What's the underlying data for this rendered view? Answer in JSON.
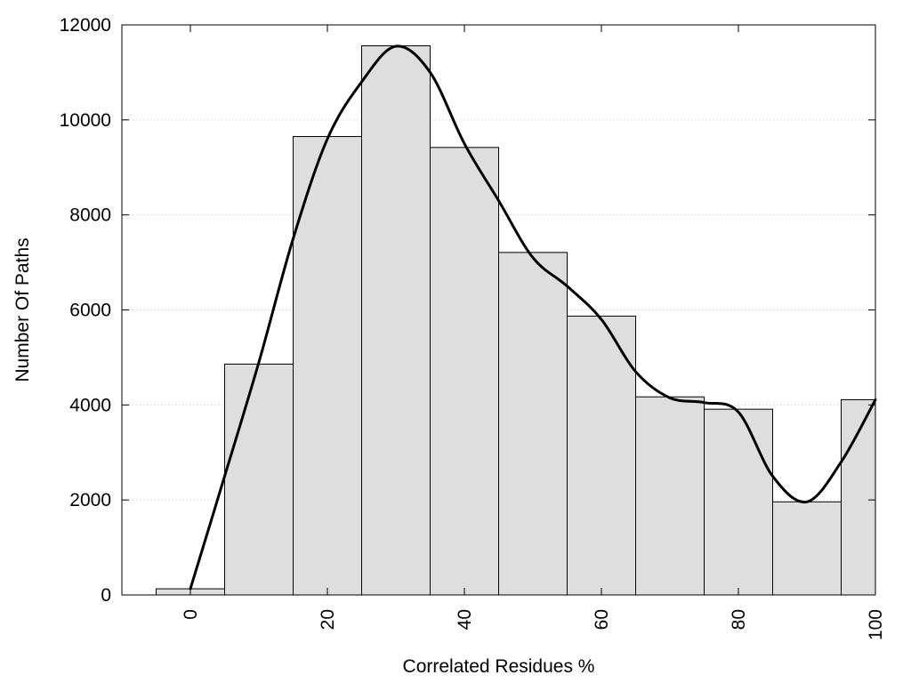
{
  "chart_data": {
    "type": "bar",
    "xlabel": "Correlated Residues %",
    "ylabel": "Number Of Paths",
    "xlim": [
      -10,
      100
    ],
    "ylim": [
      0,
      12000
    ],
    "x_ticks": [
      0,
      20,
      40,
      60,
      80,
      100
    ],
    "y_ticks": [
      0,
      2000,
      4000,
      6000,
      8000,
      10000,
      12000
    ],
    "grid": "horizontal-dotted",
    "bin_width": 10,
    "bars": [
      {
        "x": 0,
        "value": 130
      },
      {
        "x": 10,
        "value": 4860
      },
      {
        "x": 20,
        "value": 9650
      },
      {
        "x": 30,
        "value": 11560
      },
      {
        "x": 40,
        "value": 9420
      },
      {
        "x": 50,
        "value": 7210
      },
      {
        "x": 60,
        "value": 5870
      },
      {
        "x": 70,
        "value": 4170
      },
      {
        "x": 80,
        "value": 3910
      },
      {
        "x": 90,
        "value": 1960
      },
      {
        "x": 100,
        "value": 4110
      }
    ],
    "smooth_curve": {
      "x": [
        0,
        5,
        10,
        15,
        20,
        25,
        30,
        35,
        40,
        45,
        50,
        55,
        60,
        65,
        70,
        75,
        80,
        85,
        90,
        95,
        100
      ],
      "y": [
        130,
        2500,
        4900,
        7500,
        9600,
        10800,
        11550,
        11000,
        9500,
        8300,
        7100,
        6500,
        5800,
        4700,
        4150,
        4050,
        3850,
        2500,
        1960,
        2800,
        4110
      ]
    },
    "colors": {
      "bar_fill": "#dedede",
      "bar_edge": "#000000",
      "curve": "#000000"
    }
  }
}
